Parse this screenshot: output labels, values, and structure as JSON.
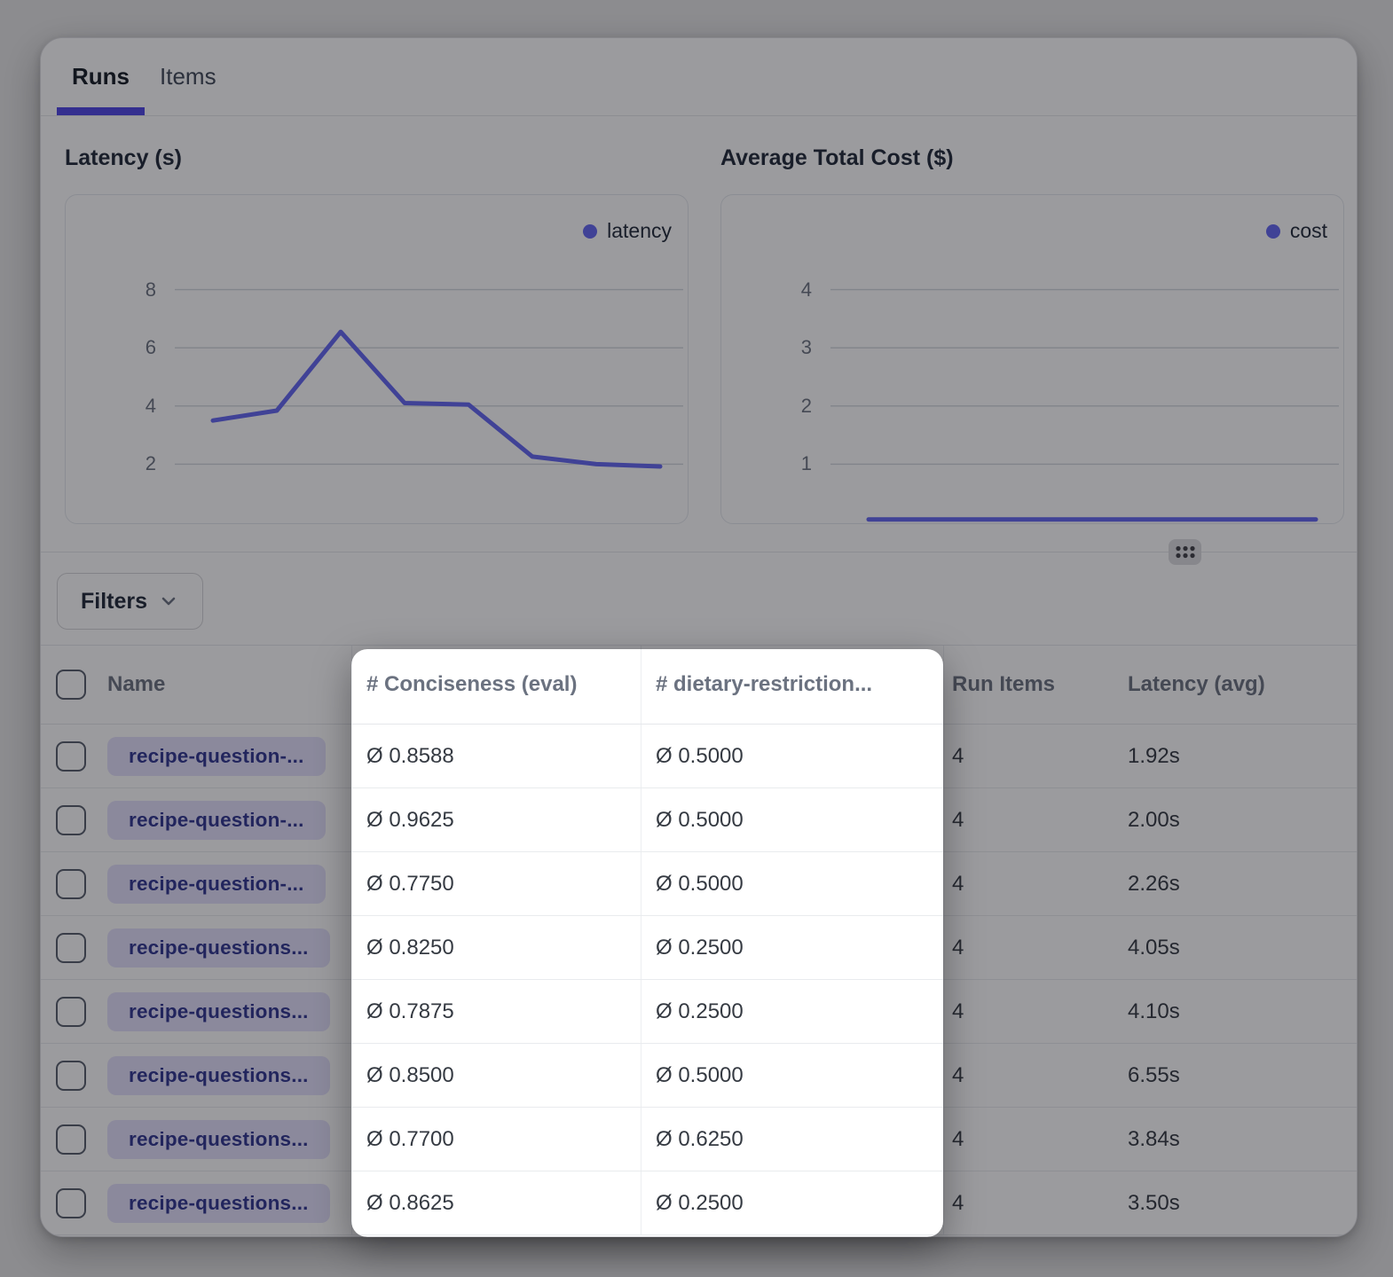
{
  "tabs": [
    {
      "label": "Runs",
      "active": true
    },
    {
      "label": "Items",
      "active": false
    }
  ],
  "chart_data": [
    {
      "type": "line",
      "title": "Latency (s)",
      "series": [
        {
          "name": "latency",
          "values": [
            3.5,
            3.84,
            6.55,
            4.1,
            4.05,
            2.26,
            2.0,
            1.92
          ]
        }
      ],
      "x_labels": [],
      "xlabel": "",
      "ylabel": "seconds",
      "ylim": [
        0,
        11.25
      ],
      "y_ticks": [
        8,
        6,
        4,
        2
      ],
      "grid": true,
      "legend_position": "top-right"
    },
    {
      "type": "line",
      "title": "Average Total Cost ($)",
      "series": [
        {
          "name": "cost",
          "values": [
            0.05,
            0.05,
            0.05,
            0.05,
            0.05,
            0.05,
            0.05,
            0.05
          ]
        }
      ],
      "x_labels": [],
      "xlabel": "",
      "ylabel": "USD",
      "ylim": [
        0,
        5.625
      ],
      "y_ticks": [
        4,
        3,
        2,
        1
      ],
      "grid": true,
      "legend_position": "top-right"
    }
  ],
  "filters_button": {
    "label": "Filters"
  },
  "table": {
    "avg_symbol": "Ø",
    "columns": [
      "Name",
      "# Conciseness (eval)",
      "# dietary-restriction...",
      "Run Items",
      "Latency (avg)"
    ],
    "rows": [
      {
        "name": "recipe-question-...",
        "conciseness": "0.8588",
        "dietary_restriction": "0.5000",
        "run_items": "4",
        "latency_avg": "1.92s"
      },
      {
        "name": "recipe-question-...",
        "conciseness": "0.9625",
        "dietary_restriction": "0.5000",
        "run_items": "4",
        "latency_avg": "2.00s"
      },
      {
        "name": "recipe-question-...",
        "conciseness": "0.7750",
        "dietary_restriction": "0.5000",
        "run_items": "4",
        "latency_avg": "2.26s"
      },
      {
        "name": "recipe-questions...",
        "conciseness": "0.8250",
        "dietary_restriction": "0.2500",
        "run_items": "4",
        "latency_avg": "4.05s"
      },
      {
        "name": "recipe-questions...",
        "conciseness": "0.7875",
        "dietary_restriction": "0.2500",
        "run_items": "4",
        "latency_avg": "4.10s"
      },
      {
        "name": "recipe-questions...",
        "conciseness": "0.8500",
        "dietary_restriction": "0.5000",
        "run_items": "4",
        "latency_avg": "6.55s"
      },
      {
        "name": "recipe-questions...",
        "conciseness": "0.7700",
        "dietary_restriction": "0.6250",
        "run_items": "4",
        "latency_avg": "3.84s"
      },
      {
        "name": "recipe-questions...",
        "conciseness": "0.8625",
        "dietary_restriction": "0.2500",
        "run_items": "4",
        "latency_avg": "3.50s"
      }
    ]
  },
  "colors": {
    "accent": "#6366f1",
    "tab_underline": "#4f46e5",
    "badge_bg": "#e4e1fc",
    "badge_text": "#2f3590",
    "overlay": "rgba(16,17,23,0.42)"
  }
}
